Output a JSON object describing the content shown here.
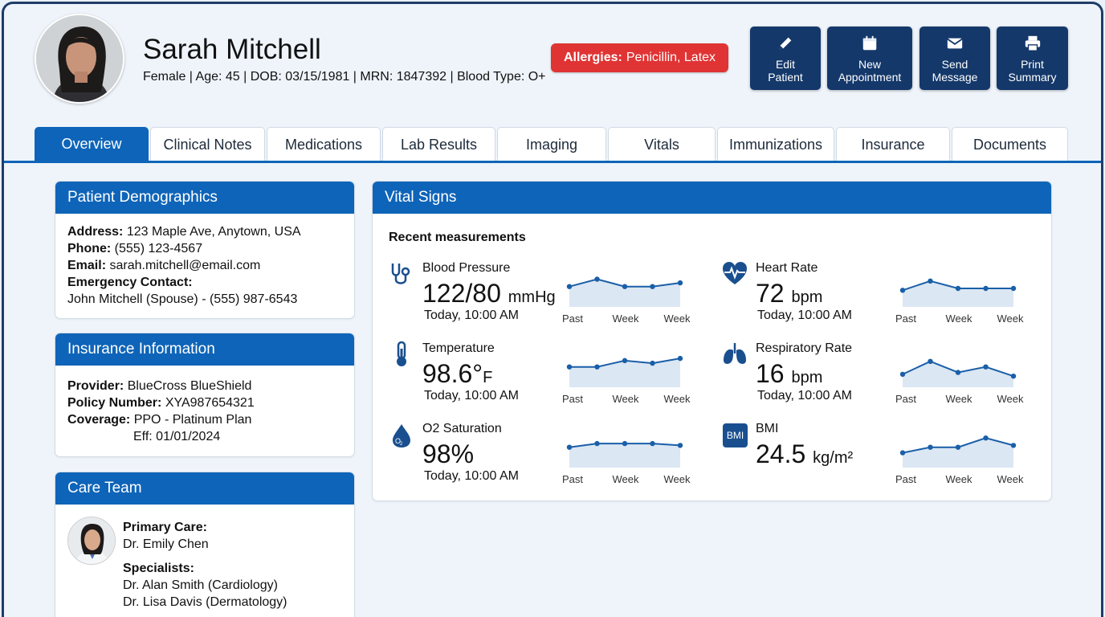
{
  "patient": {
    "name": "Sarah Mitchell",
    "meta": "Female | Age: 45 | DOB: 03/15/1981 | MRN: 1847392 | Blood Type: O+",
    "allergy_label": "Allergies:",
    "allergy_value": "Penicillin, Latex"
  },
  "actions": [
    {
      "line1": "Edit",
      "line2": "Patient",
      "icon": "pencil-icon"
    },
    {
      "line1": "New",
      "line2": "Appointment",
      "icon": "calendar-icon"
    },
    {
      "line1": "Send",
      "line2": "Message",
      "icon": "envelope-icon"
    },
    {
      "line1": "Print",
      "line2": "Summary",
      "icon": "printer-icon"
    }
  ],
  "tabs": [
    "Overview",
    "Clinical Notes",
    "Medications",
    "Lab Results",
    "Imaging",
    "Vitals",
    "Immunizations",
    "Insurance",
    "Documents"
  ],
  "demographics": {
    "title": "Patient Demographics",
    "address_label": "Address:",
    "address": "123 Maple Ave, Anytown, USA",
    "phone_label": "Phone:",
    "phone": "(555) 123-4567",
    "email_label": "Email:",
    "email": "sarah.mitchell@email.com",
    "emergency_label": "Emergency Contact:",
    "emergency": "John Mitchell (Spouse) - (555) 987-6543"
  },
  "insurance": {
    "title": "Insurance Information",
    "provider_label": "Provider:",
    "provider": "BlueCross BlueShield",
    "policy_label": "Policy Number:",
    "policy": "XYA987654321",
    "coverage_label": "Coverage:",
    "coverage": "PPO - Platinum Plan",
    "effective": "Eff: 01/01/2024"
  },
  "care_team": {
    "title": "Care Team",
    "primary_label": "Primary Care:",
    "primary": "Dr. Emily Chen",
    "specialists_label": "Specialists:",
    "specialist1": "Dr. Alan Smith (Cardiology)",
    "specialist2": "Dr. Lisa Davis (Dermatology)"
  },
  "vitals": {
    "title": "Vital Signs",
    "subtitle": "Recent measurements",
    "axis_labels": [
      "Past",
      "Week",
      "Week"
    ],
    "items": [
      {
        "name": "Blood Pressure",
        "value": "122/80",
        "unit": "mmHg",
        "time": "Today, 10:00 AM",
        "icon": "stethoscope-icon",
        "trend": [
          0.55,
          0.75,
          0.55,
          0.55,
          0.65
        ]
      },
      {
        "name": "Heart Rate",
        "value": "72",
        "unit": "bpm",
        "time": "Today, 10:00 AM",
        "icon": "heart-pulse-icon",
        "trend": [
          0.45,
          0.7,
          0.5,
          0.5,
          0.5
        ]
      },
      {
        "name": "Temperature",
        "value": "98.6°",
        "unit": "F",
        "time": "Today, 10:00 AM",
        "icon": "thermometer-icon",
        "trend": [
          0.55,
          0.55,
          0.72,
          0.65,
          0.78
        ]
      },
      {
        "name": "Respiratory Rate",
        "value": "16",
        "unit": "bpm",
        "time": "Today, 10:00 AM",
        "icon": "lungs-icon",
        "trend": [
          0.35,
          0.7,
          0.4,
          0.55,
          0.3
        ]
      },
      {
        "name": "O2 Saturation",
        "value": "98%",
        "unit": "",
        "time": "Today, 10:00 AM",
        "icon": "oxygen-drop-icon",
        "trend": [
          0.55,
          0.65,
          0.65,
          0.65,
          0.6
        ]
      },
      {
        "name": "BMI",
        "value": "24.5",
        "unit": "kg/m²",
        "time": "",
        "icon": "bmi-icon",
        "trend": [
          0.4,
          0.55,
          0.55,
          0.8,
          0.6
        ]
      }
    ]
  },
  "colors": {
    "primary": "#0e64b8",
    "header_button": "#14386a",
    "allergy": "#e03434",
    "spark_line": "#1a5fa8",
    "spark_fill": "#dbe7f3"
  }
}
